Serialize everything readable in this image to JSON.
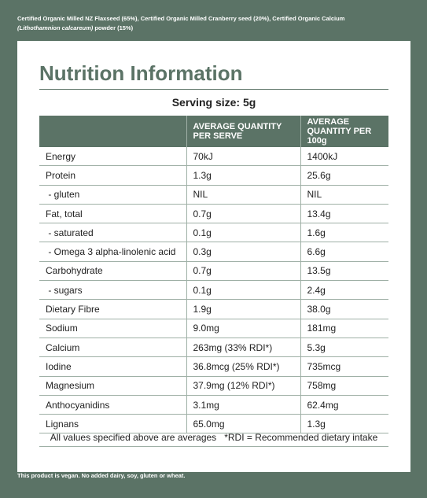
{
  "ingredients": [
    "Certified Organic Milled NZ Flaxseed (65%), Certified Organic Milled Cranberry seed (20%), Certified Organic Calcium ",
    "(Lithothamnion calcareum)",
    " powder (15%)"
  ],
  "title": "Nutrition Information",
  "serving_size": "Serving size: 5g",
  "table": {
    "header": [
      "",
      "AVERAGE QUANTITY PER SERVE",
      "AVERAGE QUANTITY PER 100g"
    ],
    "rows": [
      [
        "Energy",
        "70kJ",
        "1400kJ"
      ],
      [
        "Protein",
        "1.3g",
        "25.6g"
      ],
      [
        " - gluten",
        "NIL",
        "NIL"
      ],
      [
        "Fat, total",
        "0.7g",
        "13.4g"
      ],
      [
        " - saturated",
        "0.1g",
        "1.6g"
      ],
      [
        " - Omega 3 alpha-linolenic acid",
        "0.3g",
        "6.6g"
      ],
      [
        "Carbohydrate",
        "0.7g",
        "13.5g"
      ],
      [
        " - sugars",
        "0.1g",
        "2.4g"
      ],
      [
        "Dietary Fibre",
        "1.9g",
        "38.0g"
      ],
      [
        "Sodium",
        "9.0mg",
        "181mg"
      ],
      [
        "Calcium",
        "263mg (33% RDI*)",
        "5.3g"
      ],
      [
        "Iodine",
        "36.8mcg (25% RDI*)",
        "735mcg"
      ],
      [
        "Magnesium",
        "37.9mg (12% RDI*)",
        "758mg"
      ],
      [
        "Anthocyanidins",
        "3.1mg",
        "62.4mg"
      ],
      [
        "Lignans",
        "65.0mg",
        "1.3g"
      ]
    ]
  },
  "footnotes": [
    "All values specified above are averages",
    "*RDI = Recommended dietary intake"
  ],
  "vegan_note": "This product is vegan. No added dairy, soy, gluten or wheat."
}
